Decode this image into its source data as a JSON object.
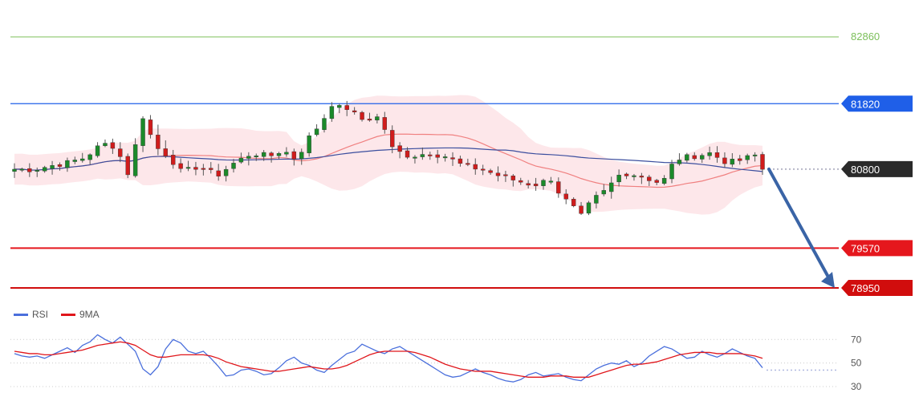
{
  "chart_data": [
    {
      "type": "candlestick",
      "title": "",
      "ylim": [
        78800,
        83000
      ],
      "x_count": 100,
      "colors": {
        "up": "#1b8a2a",
        "down": "#d01c1c",
        "wick": "#555555",
        "bands": "#fde3e6",
        "ma_fast": "#f08080",
        "ma_slow": "#3b4e9e"
      },
      "levels": [
        {
          "value": 82860,
          "label": "82860",
          "color": "#7cbf5a",
          "style": "line-text"
        },
        {
          "value": 81820,
          "label": "81820",
          "color": "#1f5fe8",
          "style": "line-badge"
        },
        {
          "value": 80800,
          "label": "80800",
          "color": "#2a2a2a",
          "style": "dotted-badge"
        },
        {
          "value": 79570,
          "label": "79570",
          "color": "#e5171d",
          "style": "line-badge"
        },
        {
          "value": 78950,
          "label": "78950",
          "color": "#d10d0d",
          "style": "line-badge"
        }
      ],
      "projection": {
        "from_value": 80800,
        "to_value": 78950,
        "color": "#3a64a6"
      },
      "close_anchors": [
        [
          0,
          80800
        ],
        [
          4,
          80790
        ],
        [
          8,
          80850
        ],
        [
          12,
          80900
        ],
        [
          16,
          80980
        ],
        [
          20,
          81200
        ],
        [
          23,
          81150
        ],
        [
          26,
          80700
        ],
        [
          29,
          81650
        ],
        [
          32,
          81150
        ],
        [
          35,
          81000
        ],
        [
          38,
          80750
        ],
        [
          42,
          80850
        ],
        [
          46,
          80700
        ],
        [
          50,
          80900
        ],
        [
          54,
          81050
        ],
        [
          58,
          81000
        ],
        [
          61,
          81100
        ],
        [
          64,
          80950
        ],
        [
          67,
          81300
        ],
        [
          70,
          81550
        ],
        [
          72,
          81820
        ],
        [
          74,
          81750
        ],
        [
          76,
          81750
        ],
        [
          78,
          81600
        ],
        [
          80,
          81550
        ],
        [
          82,
          81650
        ],
        [
          84,
          81450
        ],
        [
          86,
          81100
        ],
        [
          90,
          81000
        ],
        [
          94,
          81050
        ],
        [
          98,
          81000
        ],
        [
          102,
          80850
        ],
        [
          106,
          80800
        ],
        [
          110,
          80700
        ],
        [
          114,
          80620
        ],
        [
          118,
          80550
        ],
        [
          122,
          80650
        ],
        [
          124,
          80400
        ],
        [
          127,
          80200
        ],
        [
          129,
          80050
        ],
        [
          131,
          80300
        ],
        [
          134,
          80450
        ],
        [
          138,
          80750
        ],
        [
          142,
          80700
        ],
        [
          146,
          80600
        ],
        [
          148,
          80650
        ],
        [
          150,
          80950
        ],
        [
          154,
          81000
        ],
        [
          158,
          81050
        ],
        [
          162,
          80900
        ],
        [
          166,
          80950
        ],
        [
          168,
          81050
        ],
        [
          170,
          80800
        ]
      ]
    },
    {
      "type": "line",
      "legend": [
        {
          "name": "RSI",
          "color": "#4a6fdc"
        },
        {
          "name": "9MA",
          "color": "#e0161b"
        }
      ],
      "yticks": [
        70,
        50,
        30
      ],
      "ylim": [
        28,
        77
      ],
      "series": [
        {
          "name": "RSI",
          "values": [
            58,
            56,
            55,
            56,
            54,
            57,
            60,
            63,
            59,
            65,
            68,
            74,
            70,
            67,
            72,
            66,
            60,
            45,
            40,
            47,
            62,
            70,
            67,
            60,
            58,
            60,
            54,
            47,
            39,
            40,
            44,
            45,
            43,
            40,
            41,
            46,
            52,
            55,
            50,
            48,
            44,
            42,
            48,
            53,
            58,
            60,
            66,
            63,
            60,
            58,
            62,
            64,
            60,
            56,
            52,
            48,
            44,
            40,
            38,
            39,
            42,
            45,
            42,
            40,
            37,
            35,
            34,
            36,
            40,
            42,
            39,
            40,
            41,
            38,
            36,
            35,
            40,
            45,
            48,
            50,
            49,
            52,
            47,
            50,
            56,
            60,
            64,
            62,
            58,
            54,
            55,
            60,
            57,
            55,
            58,
            62,
            59,
            56,
            54,
            46
          ]
        },
        {
          "name": "9MA",
          "values": [
            60,
            59,
            58,
            58,
            57,
            57,
            58,
            59,
            60,
            61,
            63,
            65,
            66,
            67,
            68,
            67,
            65,
            61,
            57,
            55,
            55,
            56,
            57,
            57,
            57,
            57,
            56,
            54,
            51,
            49,
            47,
            46,
            45,
            44,
            43,
            43,
            44,
            45,
            46,
            47,
            46,
            45,
            45,
            46,
            48,
            51,
            54,
            57,
            59,
            60,
            60,
            60,
            60,
            59,
            57,
            55,
            52,
            49,
            47,
            45,
            44,
            43,
            43,
            43,
            42,
            41,
            40,
            39,
            38,
            38,
            38,
            39,
            39,
            39,
            38,
            38,
            38,
            40,
            42,
            44,
            46,
            48,
            49,
            49,
            50,
            51,
            53,
            55,
            57,
            58,
            59,
            59,
            59,
            58,
            58,
            58,
            58,
            57,
            56,
            54
          ]
        }
      ]
    }
  ]
}
